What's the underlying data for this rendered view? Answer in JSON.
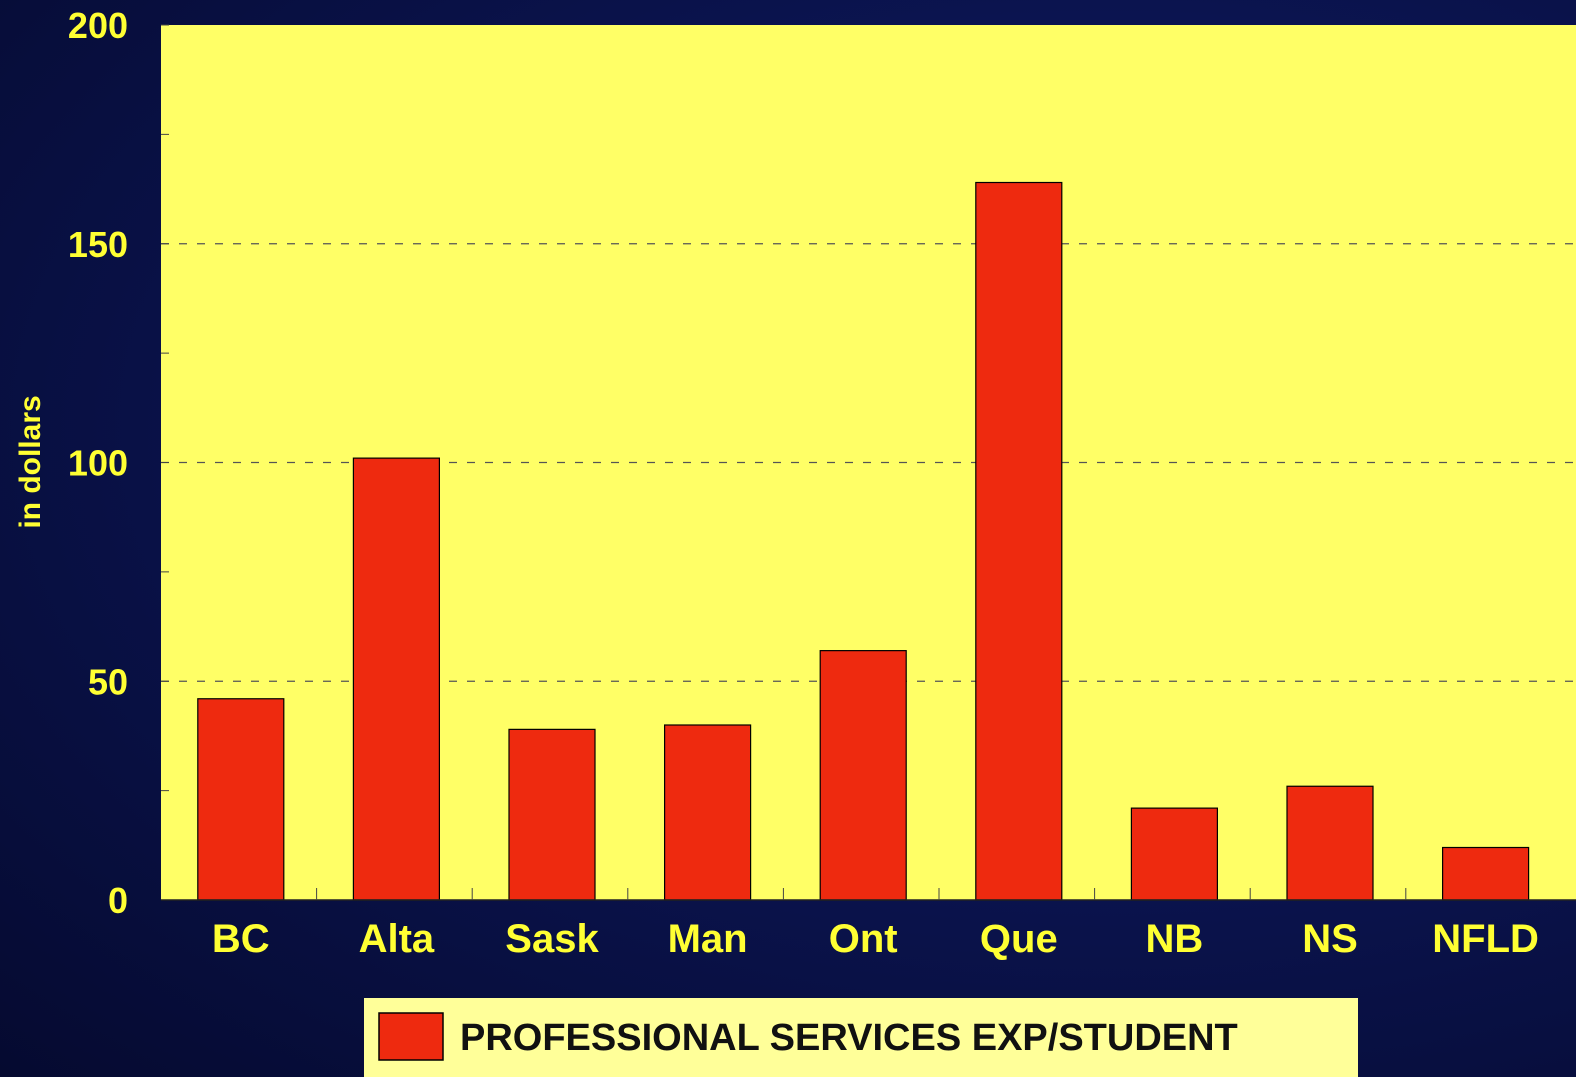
{
  "chart_data": {
    "type": "bar",
    "categories": [
      "BC",
      "Alta",
      "Sask",
      "Man",
      "Ont",
      "Que",
      "NB",
      "NS",
      "NFLD"
    ],
    "series": [
      {
        "name": "PROFESSIONAL SERVICES EXP/STUDENT",
        "values": [
          46,
          101,
          39,
          40,
          57,
          164,
          21,
          26,
          12
        ],
        "color": "#ee2a0f"
      }
    ],
    "title": "",
    "xlabel": "",
    "ylabel": "in dollars",
    "ylim": [
      0,
      200
    ],
    "yticks": [
      0,
      50,
      100,
      150,
      200
    ],
    "ytick_labels": [
      "0",
      "50",
      "100",
      "150",
      "200"
    ],
    "grid": "dashed horizontal at labeled ticks",
    "legend_position": "bottom-center",
    "colors": {
      "plot_background": "#ffff66",
      "page_background": "#0b1450",
      "text": "#ffff33",
      "bar": "#ee2a0f",
      "legend_background": "#ffff99"
    }
  }
}
